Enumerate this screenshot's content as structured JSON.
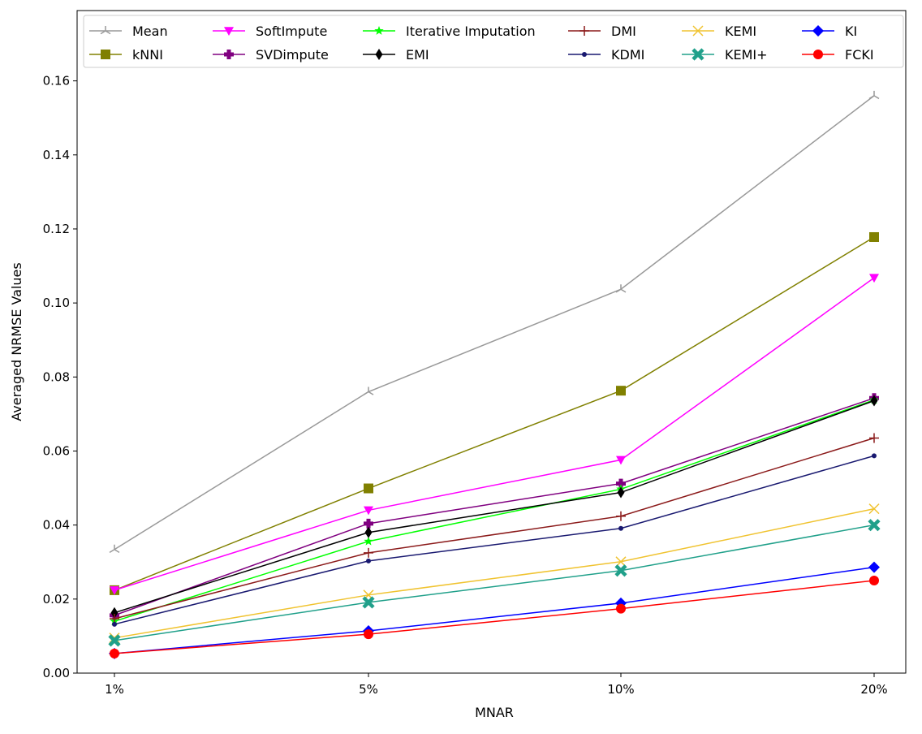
{
  "chart_data": {
    "type": "line",
    "title": "",
    "xlabel": "MNAR",
    "ylabel": "Averaged NRMSE Values",
    "categories": [
      "1%",
      "5%",
      "10%",
      "20%"
    ],
    "ylim": [
      0,
      0.179
    ],
    "yticks": [
      "0.00",
      "0.02",
      "0.04",
      "0.06",
      "0.08",
      "0.10",
      "0.12",
      "0.14",
      "0.16"
    ],
    "grid": false,
    "legend_placement": "top",
    "series": [
      {
        "name": "Mean",
        "color": "#999999",
        "marker": "tri",
        "values": [
          0.0334,
          0.076,
          0.1037,
          0.156
        ]
      },
      {
        "name": "kNNI",
        "color": "#808000",
        "marker": "square",
        "values": [
          0.0224,
          0.0499,
          0.0763,
          0.1178
        ]
      },
      {
        "name": "SoftImpute",
        "color": "#ff00ff",
        "marker": "triangle-down",
        "values": [
          0.0224,
          0.044,
          0.0576,
          0.1068
        ]
      },
      {
        "name": "SVDimpute",
        "color": "#800080",
        "marker": "plus-filled",
        "values": [
          0.0156,
          0.0404,
          0.0512,
          0.0743
        ]
      },
      {
        "name": "Iterative Imputation",
        "color": "#00ff00",
        "marker": "star",
        "values": [
          0.014,
          0.0356,
          0.0497,
          0.0738
        ]
      },
      {
        "name": "EMI",
        "color": "#000000",
        "marker": "diamond-thin",
        "values": [
          0.0163,
          0.038,
          0.0488,
          0.0736
        ]
      },
      {
        "name": "DMI",
        "color": "#8b1a1a",
        "marker": "plus",
        "values": [
          0.0147,
          0.0325,
          0.0424,
          0.0635
        ]
      },
      {
        "name": "KDMI",
        "color": "#191970",
        "marker": "dot",
        "values": [
          0.0132,
          0.0303,
          0.0391,
          0.0587
        ]
      },
      {
        "name": "KEMI",
        "color": "#f0c330",
        "marker": "x",
        "values": [
          0.0095,
          0.0211,
          0.0301,
          0.0444
        ]
      },
      {
        "name": "KEMI+",
        "color": "#20a08a",
        "marker": "x-filled",
        "values": [
          0.0088,
          0.0191,
          0.0277,
          0.04
        ]
      },
      {
        "name": "KI",
        "color": "#0000ff",
        "marker": "diamond",
        "values": [
          0.0053,
          0.0114,
          0.0189,
          0.0286
        ]
      },
      {
        "name": "FCKI",
        "color": "#ff0000",
        "marker": "circle",
        "values": [
          0.0053,
          0.0105,
          0.0174,
          0.025
        ]
      }
    ]
  }
}
